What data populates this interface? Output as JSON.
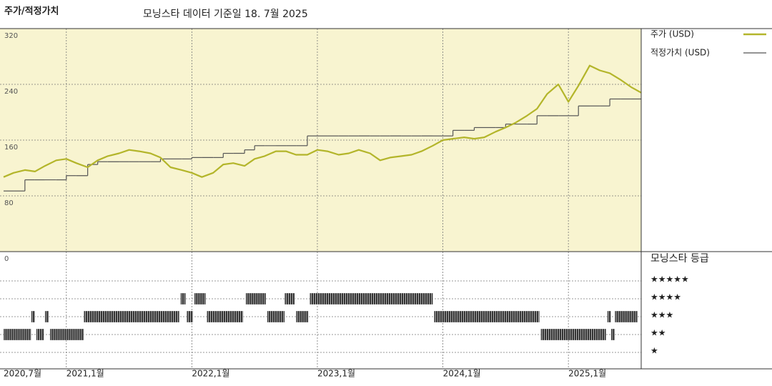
{
  "chart_data": [
    {
      "type": "line",
      "title": "주가/적정가치",
      "subtitle": "모닝스타 데이터 기준일 18. 7월 2025",
      "xlim": [
        2020.5,
        2025.58
      ],
      "xticks": [
        {
          "value": 2020.5,
          "label": "2020,7월"
        },
        {
          "value": 2021,
          "label": "2021,1월"
        },
        {
          "value": 2022,
          "label": "2022,1월"
        },
        {
          "value": 2023,
          "label": "2023,1월"
        },
        {
          "value": 2024,
          "label": "2024,1월"
        },
        {
          "value": 2025,
          "label": "2025,1월"
        }
      ],
      "ylim": [
        0,
        320
      ],
      "yticks": [
        0,
        80,
        160,
        240,
        320
      ],
      "grid": true,
      "legend": "right",
      "x": [
        2020.5,
        2020.58,
        2020.67,
        2020.75,
        2020.83,
        2020.92,
        2021,
        2021.08,
        2021.17,
        2021.25,
        2021.33,
        2021.42,
        2021.5,
        2021.58,
        2021.67,
        2021.75,
        2021.83,
        2021.92,
        2022,
        2022.08,
        2022.17,
        2022.25,
        2022.33,
        2022.42,
        2022.5,
        2022.58,
        2022.67,
        2022.75,
        2022.83,
        2022.92,
        2023,
        2023.08,
        2023.17,
        2023.25,
        2023.33,
        2023.42,
        2023.5,
        2023.58,
        2023.67,
        2023.75,
        2023.83,
        2023.92,
        2024,
        2024.08,
        2024.17,
        2024.25,
        2024.33,
        2024.42,
        2024.5,
        2024.58,
        2024.67,
        2024.75,
        2024.83,
        2024.92,
        2025,
        2025.08,
        2025.17,
        2025.25,
        2025.33,
        2025.42,
        2025.5,
        2025.58
      ],
      "series": [
        {
          "name": "주가 (USD)",
          "color": "#b3b52a",
          "style": "line",
          "values": [
            107,
            113,
            117,
            115,
            123,
            131,
            133,
            127,
            121,
            131,
            137,
            141,
            146,
            144,
            141,
            135,
            121,
            117,
            113,
            107,
            113,
            125,
            127,
            123,
            133,
            137,
            144,
            144,
            139,
            139,
            146,
            144,
            139,
            141,
            146,
            141,
            131,
            135,
            137,
            139,
            144,
            152,
            160,
            162,
            164,
            162,
            164,
            172,
            178,
            185,
            195,
            205,
            226,
            240,
            215,
            238,
            267,
            260,
            256,
            246,
            236,
            228
          ]
        },
        {
          "name": "적정가치 (USD)",
          "color": "#555555",
          "style": "step",
          "values": [
            87,
            87,
            103,
            103,
            103,
            103,
            109,
            109,
            125,
            129,
            129,
            129,
            129,
            129,
            129,
            133,
            133,
            133,
            135,
            135,
            135,
            141,
            141,
            146,
            152,
            152,
            152,
            152,
            152,
            166,
            166,
            166,
            166,
            166,
            166,
            166,
            166,
            166,
            166,
            166,
            166,
            166,
            166,
            174,
            174,
            178,
            178,
            178,
            183,
            183,
            183,
            195,
            195,
            195,
            195,
            209,
            209,
            209,
            219,
            219,
            219,
            219
          ]
        }
      ]
    },
    {
      "type": "rating",
      "title": "모닝스타 등급",
      "categories": [
        "★★★★★",
        "★★★★",
        "★★★",
        "★★",
        "★"
      ],
      "color": "#333333",
      "segments": [
        {
          "start": 2020.5,
          "end": 2020.72,
          "value": 2
        },
        {
          "start": 2020.72,
          "end": 2020.75,
          "value": 3
        },
        {
          "start": 2020.76,
          "end": 2020.82,
          "value": 2
        },
        {
          "start": 2020.83,
          "end": 2020.86,
          "value": 3
        },
        {
          "start": 2020.87,
          "end": 2021.14,
          "value": 2
        },
        {
          "start": 2021.14,
          "end": 2021.9,
          "value": 3
        },
        {
          "start": 2021.91,
          "end": 2021.95,
          "value": 4
        },
        {
          "start": 2021.96,
          "end": 2022.01,
          "value": 3
        },
        {
          "start": 2022.02,
          "end": 2022.11,
          "value": 4
        },
        {
          "start": 2022.12,
          "end": 2022.41,
          "value": 3
        },
        {
          "start": 2022.43,
          "end": 2022.59,
          "value": 4
        },
        {
          "start": 2022.6,
          "end": 2022.74,
          "value": 3
        },
        {
          "start": 2022.74,
          "end": 2022.82,
          "value": 4
        },
        {
          "start": 2022.83,
          "end": 2022.93,
          "value": 3
        },
        {
          "start": 2022.94,
          "end": 2023.92,
          "value": 4
        },
        {
          "start": 2023.93,
          "end": 2024.77,
          "value": 3
        },
        {
          "start": 2024.78,
          "end": 2025.3,
          "value": 2
        },
        {
          "start": 2025.31,
          "end": 2025.34,
          "value": 3
        },
        {
          "start": 2025.34,
          "end": 2025.37,
          "value": 2
        },
        {
          "start": 2025.37,
          "end": 2025.55,
          "value": 3
        }
      ]
    }
  ]
}
